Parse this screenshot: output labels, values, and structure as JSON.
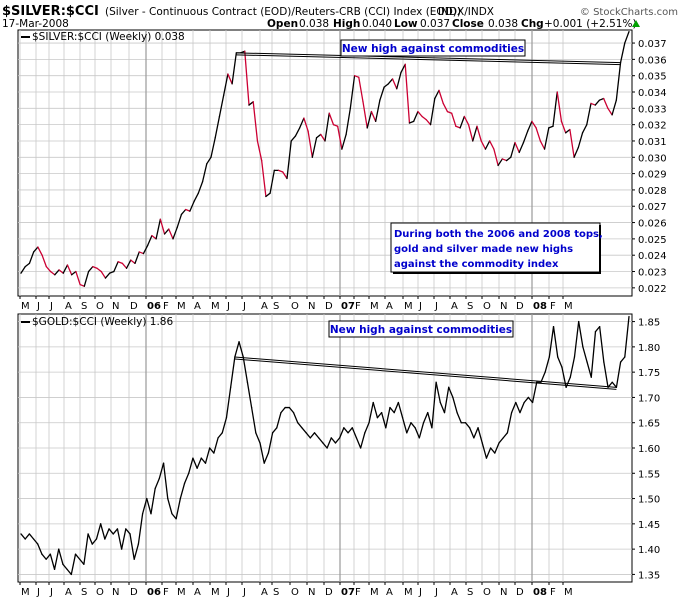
{
  "header": {
    "symbol": "$SILVER:$CCI",
    "description": "(Silver - Continuous Contract (EOD)/Reuters-CRB (CCI) Index (EOD))",
    "exchange": "INDX/INDX",
    "date": "17-Mar-2008",
    "watermark": "© StockCharts.com",
    "open_label": "Open",
    "open": "0.038",
    "high_label": "High",
    "high": "0.040",
    "low_label": "Low",
    "low": "0.037",
    "close_label": "Close",
    "close": "0.038",
    "chg_label": "Chg",
    "chg": "+0.001 (+2.51%)",
    "chg_icon": "triangle-up-icon"
  },
  "colors": {
    "up": "#000000",
    "down": "#cc0033",
    "grid": "#c8c8c8",
    "annotation_text": "#0000cc",
    "neutral": "#000000"
  },
  "chart_data": [
    {
      "type": "line",
      "legend": "$SILVER:$CCI (Weekly) 0.038",
      "ylim": [
        0.0215,
        0.0378
      ],
      "yticks": [
        "0.022",
        "0.023",
        "0.024",
        "0.025",
        "0.026",
        "0.027",
        "0.028",
        "0.029",
        "0.030",
        "0.031",
        "0.032",
        "0.033",
        "0.034",
        "0.035",
        "0.036",
        "0.037"
      ],
      "xticks": [
        "M",
        "J",
        "J",
        "A",
        "S",
        "O",
        "N",
        "D",
        "06",
        "F",
        "M",
        "A",
        "M",
        "J",
        "J",
        "A",
        "S",
        "O",
        "N",
        "D",
        "07",
        "F",
        "M",
        "A",
        "M",
        "J",
        "J",
        "A",
        "S",
        "O",
        "N",
        "D",
        "08",
        "F",
        "M"
      ],
      "grid": true,
      "up_down_coloring": true,
      "annotations": [
        {
          "text": "New high against commodities",
          "from_week": 51,
          "to_week": 142
        },
        {
          "lines": [
            "During both the 2006 and 2008 tops,",
            "gold and silver made new highs",
            "against the commodity index"
          ]
        }
      ],
      "values": [
        0.0229,
        0.0233,
        0.0235,
        0.0242,
        0.0245,
        0.024,
        0.0233,
        0.023,
        0.0228,
        0.0231,
        0.0229,
        0.0234,
        0.0228,
        0.023,
        0.0222,
        0.0221,
        0.023,
        0.0233,
        0.0232,
        0.023,
        0.0226,
        0.0229,
        0.023,
        0.0236,
        0.0235,
        0.0232,
        0.0237,
        0.0235,
        0.0242,
        0.0241,
        0.0246,
        0.0252,
        0.025,
        0.0262,
        0.0253,
        0.0256,
        0.025,
        0.0257,
        0.0265,
        0.0268,
        0.0267,
        0.0273,
        0.0278,
        0.0285,
        0.0296,
        0.03,
        0.0312,
        0.0325,
        0.0338,
        0.0351,
        0.0345,
        0.0364,
        0.0364,
        0.0365,
        0.0332,
        0.0334,
        0.031,
        0.0298,
        0.0276,
        0.0278,
        0.0292,
        0.0292,
        0.0291,
        0.0287,
        0.031,
        0.0313,
        0.0318,
        0.0324,
        0.0316,
        0.03,
        0.0312,
        0.0314,
        0.031,
        0.0327,
        0.032,
        0.0319,
        0.0305,
        0.0314,
        0.033,
        0.035,
        0.0349,
        0.0334,
        0.0318,
        0.0328,
        0.0322,
        0.0335,
        0.0343,
        0.0345,
        0.0348,
        0.0342,
        0.0352,
        0.0357,
        0.0321,
        0.0322,
        0.0328,
        0.0325,
        0.0323,
        0.032,
        0.0336,
        0.0341,
        0.0333,
        0.0328,
        0.0327,
        0.0319,
        0.0318,
        0.0325,
        0.032,
        0.031,
        0.0319,
        0.031,
        0.0305,
        0.031,
        0.0305,
        0.0295,
        0.0299,
        0.0298,
        0.03,
        0.0309,
        0.0303,
        0.0309,
        0.0316,
        0.0322,
        0.0318,
        0.031,
        0.0305,
        0.0318,
        0.0319,
        0.034,
        0.0322,
        0.0315,
        0.0317,
        0.03,
        0.0306,
        0.0315,
        0.032,
        0.0333,
        0.0332,
        0.0335,
        0.0336,
        0.033,
        0.0326,
        0.0335,
        0.0358,
        0.037,
        0.0377
      ]
    },
    {
      "type": "line",
      "legend": "$GOLD:$CCI (Weekly) 1.86",
      "ylim": [
        1.335,
        1.865
      ],
      "yticks": [
        "1.35",
        "1.40",
        "1.45",
        "1.50",
        "1.55",
        "1.60",
        "1.65",
        "1.70",
        "1.75",
        "1.80",
        "1.85"
      ],
      "xticks": [
        "M",
        "J",
        "J",
        "A",
        "S",
        "O",
        "N",
        "D",
        "06",
        "F",
        "M",
        "A",
        "M",
        "J",
        "J",
        "A",
        "S",
        "O",
        "N",
        "D",
        "07",
        "F",
        "M",
        "A",
        "M",
        "J",
        "J",
        "A",
        "S",
        "O",
        "N",
        "D",
        "08",
        "F",
        "M"
      ],
      "grid": true,
      "annotations": [
        {
          "text": "New high against commodities",
          "from_week": 51,
          "to_week": 142
        }
      ],
      "values": [
        1.43,
        1.42,
        1.43,
        1.42,
        1.41,
        1.39,
        1.38,
        1.39,
        1.36,
        1.4,
        1.37,
        1.36,
        1.35,
        1.39,
        1.38,
        1.37,
        1.43,
        1.41,
        1.42,
        1.45,
        1.42,
        1.44,
        1.43,
        1.44,
        1.4,
        1.44,
        1.43,
        1.38,
        1.41,
        1.47,
        1.5,
        1.47,
        1.52,
        1.54,
        1.57,
        1.5,
        1.47,
        1.46,
        1.5,
        1.53,
        1.55,
        1.58,
        1.56,
        1.58,
        1.57,
        1.6,
        1.59,
        1.62,
        1.63,
        1.66,
        1.72,
        1.78,
        1.81,
        1.78,
        1.73,
        1.68,
        1.63,
        1.61,
        1.57,
        1.59,
        1.63,
        1.64,
        1.67,
        1.68,
        1.68,
        1.67,
        1.65,
        1.64,
        1.63,
        1.62,
        1.63,
        1.62,
        1.61,
        1.6,
        1.62,
        1.61,
        1.62,
        1.64,
        1.63,
        1.64,
        1.62,
        1.6,
        1.63,
        1.65,
        1.69,
        1.66,
        1.67,
        1.64,
        1.68,
        1.67,
        1.69,
        1.66,
        1.63,
        1.65,
        1.64,
        1.62,
        1.65,
        1.67,
        1.64,
        1.73,
        1.69,
        1.67,
        1.72,
        1.7,
        1.67,
        1.65,
        1.65,
        1.64,
        1.62,
        1.64,
        1.61,
        1.58,
        1.6,
        1.59,
        1.61,
        1.62,
        1.63,
        1.67,
        1.69,
        1.67,
        1.69,
        1.7,
        1.69,
        1.73,
        1.73,
        1.75,
        1.78,
        1.84,
        1.78,
        1.76,
        1.72,
        1.74,
        1.78,
        1.85,
        1.8,
        1.77,
        1.74,
        1.83,
        1.84,
        1.77,
        1.72,
        1.73,
        1.72,
        1.77,
        1.78,
        1.86
      ]
    }
  ]
}
